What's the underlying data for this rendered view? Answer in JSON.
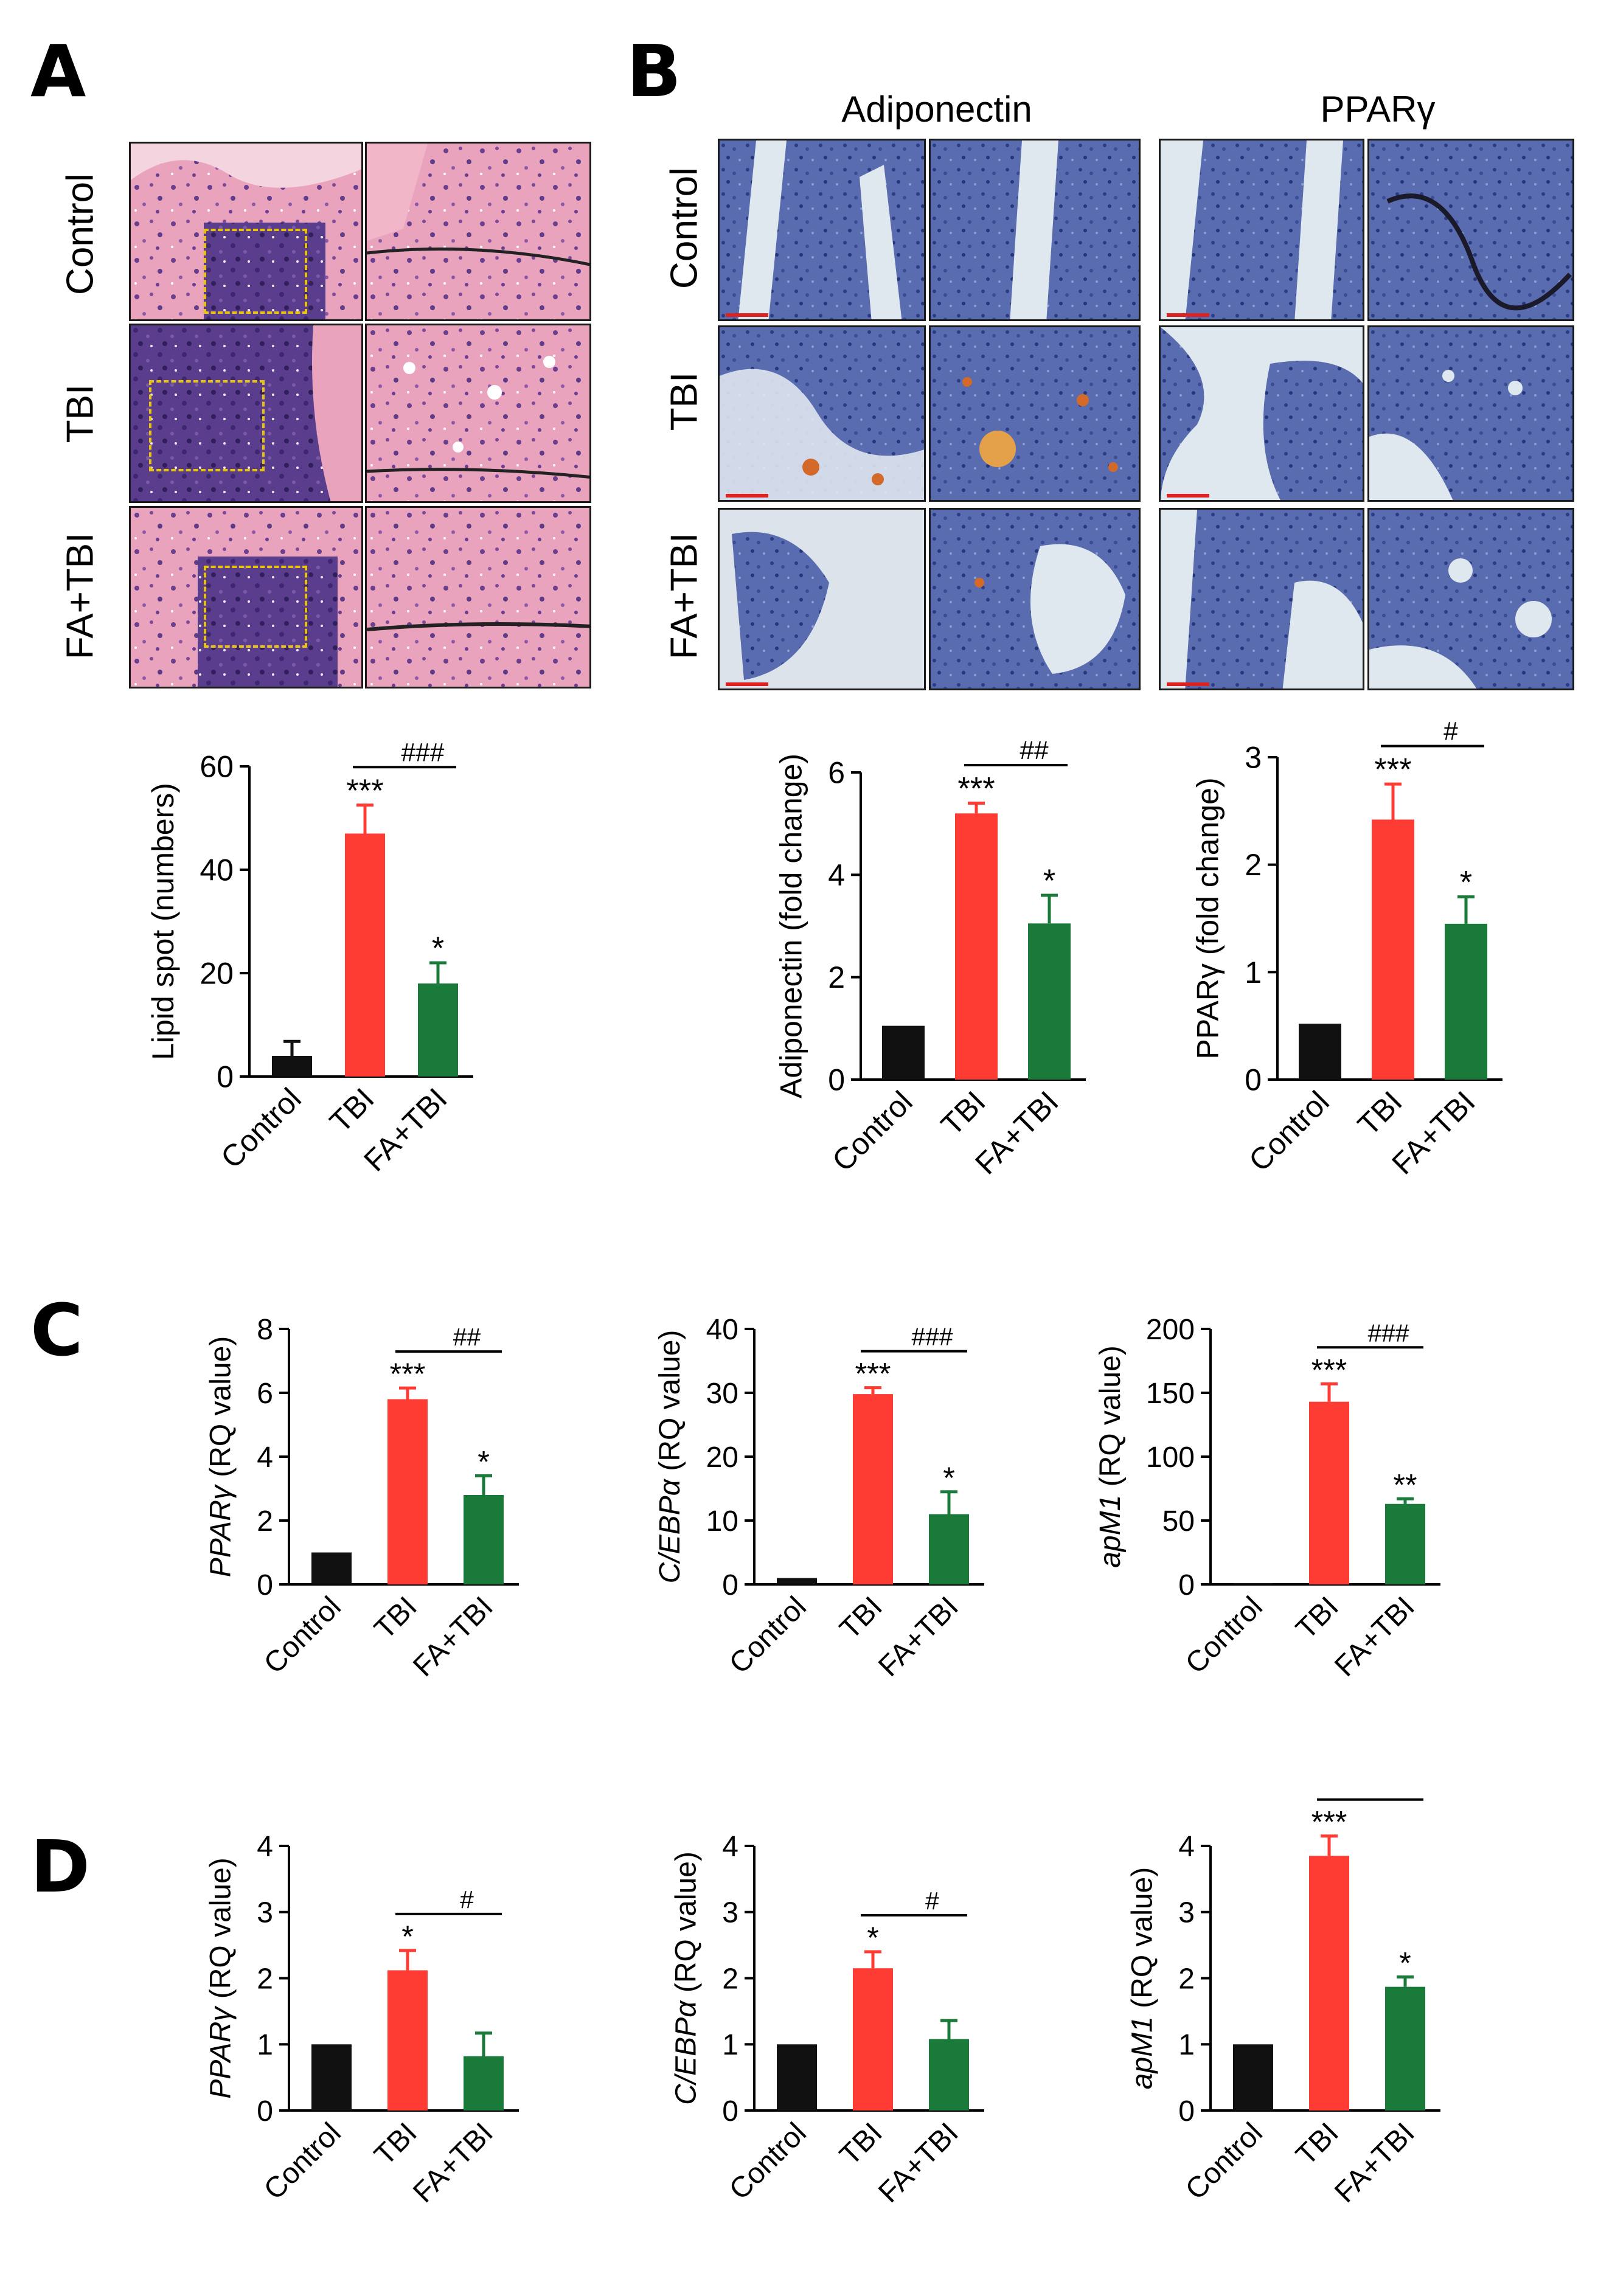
{
  "panels": {
    "A": "A",
    "B": "B",
    "C": "C",
    "D": "D"
  },
  "histology": {
    "rows": [
      "Control",
      "TBI",
      "FA+TBI"
    ],
    "b_columns": [
      "Adiponectin",
      "PPARγ"
    ]
  },
  "colors": {
    "control": "#111111",
    "tbi": "#ff3c33",
    "fa_tbi": "#1a7a3a",
    "he_pink": "#e89ab4",
    "he_purple": "#5b3f8e",
    "ihc_blue": "#4a5ea8",
    "ihc_bg": "#dfe7ef",
    "ihc_brown": "#d46a2a"
  },
  "chart_data": [
    {
      "id": "A-lipid",
      "type": "bar",
      "categories": [
        "Control",
        "TBI",
        "FA+TBI"
      ],
      "values": [
        4,
        47,
        18
      ],
      "errors": [
        2.8,
        5.5,
        4
      ],
      "ylabel": "Lipid spot (numbers)",
      "ylim": [
        0,
        60
      ],
      "yticks": [
        "0",
        "20",
        "40",
        "60"
      ],
      "stars": [
        "",
        "***",
        "*"
      ],
      "hash": "###"
    },
    {
      "id": "B-adiponectin",
      "type": "bar",
      "categories": [
        "Control",
        "TBI",
        "FA+TBI"
      ],
      "values": [
        1.05,
        5.2,
        3.05
      ],
      "errors": [
        0,
        0.2,
        0.55
      ],
      "ylabel": "Adiponectin (fold change)",
      "ylim": [
        0,
        6
      ],
      "yticks": [
        "0",
        "2",
        "4",
        "6"
      ],
      "stars": [
        "",
        "***",
        "*"
      ],
      "hash": "##"
    },
    {
      "id": "B-ppar",
      "type": "bar",
      "categories": [
        "Control",
        "TBI",
        "FA+TBI"
      ],
      "values": [
        0.52,
        2.42,
        1.45
      ],
      "errors": [
        0,
        0.33,
        0.25
      ],
      "ylabel": "PPARγ (fold change)",
      "ylim": [
        0,
        3
      ],
      "yticks": [
        "0",
        "1",
        "2",
        "3"
      ],
      "stars": [
        "",
        "***",
        "*"
      ],
      "hash": "#"
    },
    {
      "id": "C-ppar",
      "type": "bar",
      "categories": [
        "Control",
        "TBI",
        "FA+TBI"
      ],
      "values": [
        1.0,
        5.8,
        2.8
      ],
      "errors": [
        0,
        0.35,
        0.6
      ],
      "ylabel_italic": "PPARγ",
      "ylabel_rest": " (RQ value)",
      "ylim": [
        0,
        8
      ],
      "yticks": [
        "0",
        "2",
        "4",
        "6",
        "8"
      ],
      "stars": [
        "",
        "***",
        "*"
      ],
      "hash": "##"
    },
    {
      "id": "C-cebpa",
      "type": "bar",
      "categories": [
        "Control",
        "TBI",
        "FA+TBI"
      ],
      "values": [
        1.0,
        29.8,
        11.0
      ],
      "errors": [
        0,
        1.0,
        3.5
      ],
      "ylabel_italic": "C/EBPα",
      "ylabel_rest": " (RQ value)",
      "ylim": [
        0,
        40
      ],
      "yticks": [
        "0",
        "10",
        "20",
        "30",
        "40"
      ],
      "stars": [
        "",
        "***",
        "*"
      ],
      "hash": "###"
    },
    {
      "id": "C-apm1",
      "type": "bar",
      "categories": [
        "Control",
        "TBI",
        "FA+TBI"
      ],
      "values": [
        1.0,
        143,
        63
      ],
      "errors": [
        0,
        14,
        4
      ],
      "ylabel_italic": "apM1",
      "ylabel_rest": " (RQ value)",
      "ylim": [
        0,
        200
      ],
      "yticks": [
        "0",
        "50",
        "100",
        "150",
        "200"
      ],
      "stars": [
        "",
        "***",
        "**"
      ],
      "hash": "###"
    },
    {
      "id": "D-ppar",
      "type": "bar",
      "categories": [
        "Control",
        "TBI",
        "FA+TBI"
      ],
      "values": [
        1.0,
        2.12,
        0.82
      ],
      "errors": [
        0,
        0.3,
        0.35
      ],
      "ylabel_italic": "PPARγ",
      "ylabel_rest": " (RQ value)",
      "ylim": [
        0,
        4
      ],
      "yticks": [
        "0",
        "1",
        "2",
        "3",
        "4"
      ],
      "stars": [
        "",
        "*",
        ""
      ],
      "hash": "#"
    },
    {
      "id": "D-cebpa",
      "type": "bar",
      "categories": [
        "Control",
        "TBI",
        "FA+TBI"
      ],
      "values": [
        1.0,
        2.15,
        1.08
      ],
      "errors": [
        0,
        0.25,
        0.28
      ],
      "ylabel_italic": "C/EBPα",
      "ylabel_rest": " (RQ value)",
      "ylim": [
        0,
        4
      ],
      "yticks": [
        "0",
        "1",
        "2",
        "3",
        "4"
      ],
      "stars": [
        "",
        "*",
        ""
      ],
      "hash": "#"
    },
    {
      "id": "D-apm1",
      "type": "bar",
      "categories": [
        "Control",
        "TBI",
        "FA+TBI"
      ],
      "values": [
        1.0,
        3.85,
        1.87
      ],
      "errors": [
        0,
        0.3,
        0.15
      ],
      "ylabel_italic": "apM1",
      "ylabel_rest": " (RQ value)",
      "ylim": [
        0,
        4
      ],
      "yticks": [
        "0",
        "1",
        "2",
        "3",
        "4"
      ],
      "stars": [
        "",
        "***",
        "*"
      ],
      "hash": "###"
    }
  ]
}
